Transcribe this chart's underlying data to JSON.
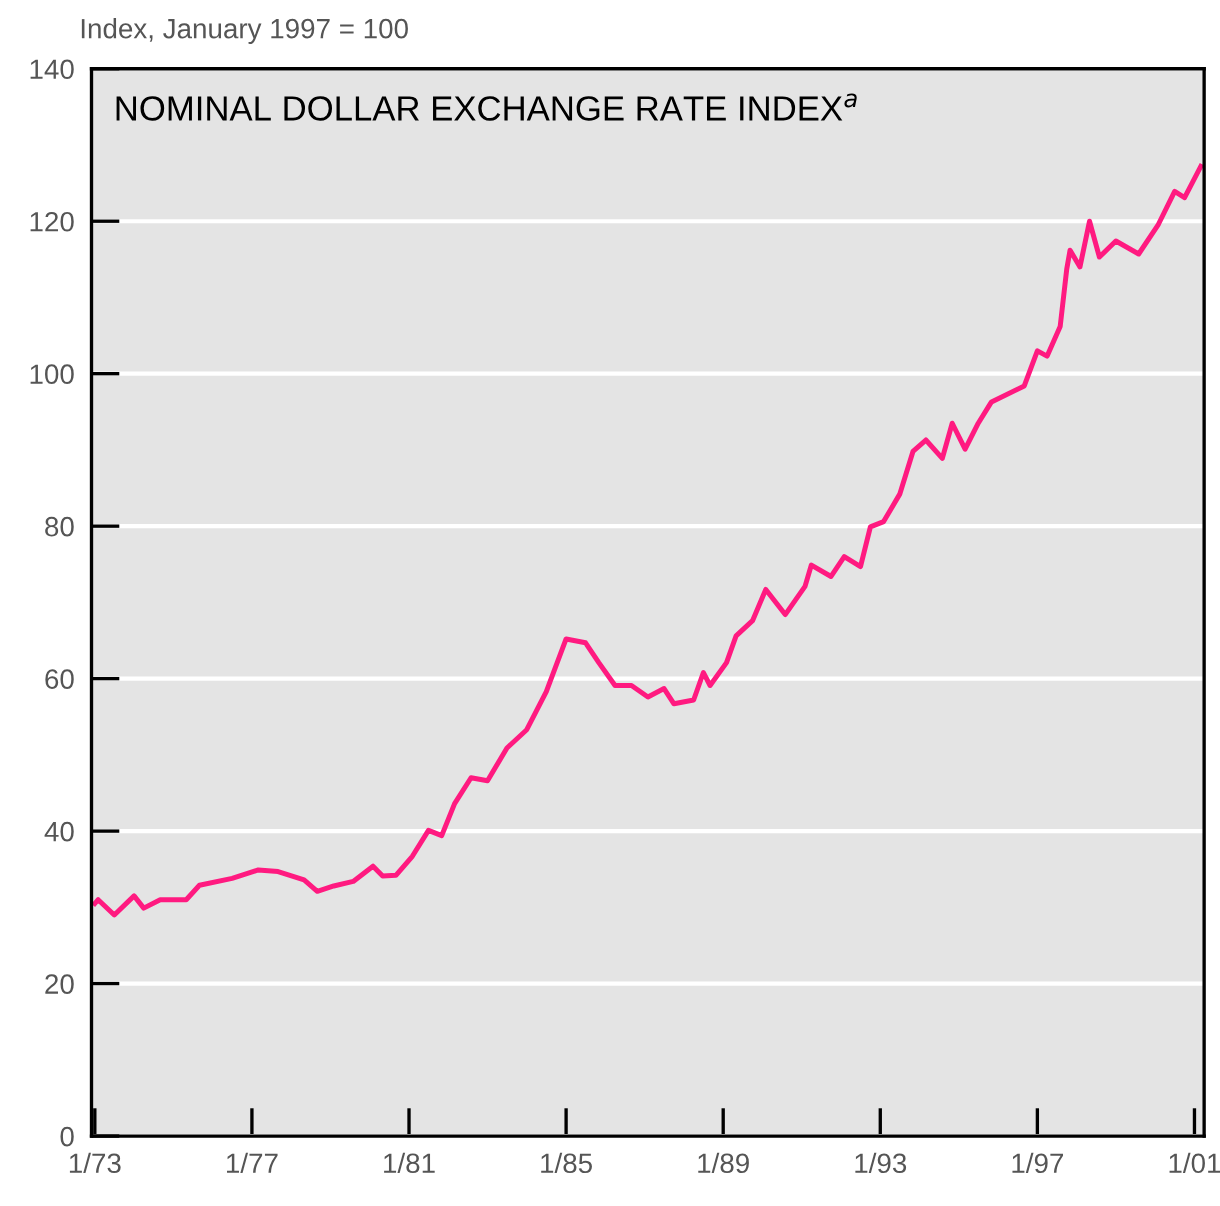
{
  "chart_data": {
    "type": "line",
    "title": "NOMINAL DOLLAR EXCHANGE RATE INDEX$^{a}$",
    "ylabel": "Index, January 1997 = 100",
    "x": [
      "1973-01",
      "1973-02",
      "1973-07",
      "1974-01",
      "1974-04",
      "1974-09",
      "1975-05",
      "1975-09",
      "1976-07",
      "1977-03",
      "1977-09",
      "1978-05",
      "1978-09",
      "1979-02",
      "1979-08",
      "1980-02",
      "1980-05",
      "1980-09",
      "1981-02",
      "1981-07",
      "1981-11",
      "1982-03",
      "1982-08",
      "1983-01",
      "1983-07",
      "1984-01",
      "1984-07",
      "1985-01",
      "1985-07",
      "1985-11",
      "1986-04",
      "1986-09",
      "1987-02",
      "1987-07",
      "1987-10",
      "1988-04",
      "1988-07",
      "1988-09",
      "1989-02",
      "1989-05",
      "1989-10",
      "1990-02",
      "1990-08",
      "1991-02",
      "1991-04",
      "1991-10",
      "1992-02",
      "1992-07",
      "1992-10",
      "1993-02",
      "1993-07",
      "1993-11",
      "1994-03",
      "1994-08",
      "1994-11",
      "1995-03",
      "1995-07",
      "1995-11",
      "1996-09",
      "1997-01",
      "1997-04",
      "1997-08",
      "1997-10",
      "1997-11",
      "1998-02",
      "1998-05",
      "1998-08",
      "1999-01",
      "1999-08",
      "2000-02",
      "2000-07",
      "2000-10",
      "2001-03"
    ],
    "series": [
      {
        "color": "#ff1a80",
        "values": [
          30.5,
          31.0,
          29.0,
          31.5,
          29.9,
          31.0,
          31.0,
          32.9,
          33.8,
          34.9,
          34.7,
          33.6,
          32.1,
          32.8,
          33.4,
          35.4,
          34.1,
          34.2,
          36.7,
          40.1,
          39.4,
          43.6,
          47.0,
          46.6,
          50.9,
          53.3,
          58.3,
          65.2,
          64.7,
          62.1,
          59.1,
          59.1,
          57.6,
          58.7,
          56.7,
          57.2,
          60.8,
          59.1,
          62.1,
          65.6,
          67.6,
          71.7,
          68.4,
          72.1,
          74.9,
          73.4,
          76.0,
          74.7,
          79.9,
          80.6,
          84.2,
          89.8,
          91.3,
          88.9,
          93.5,
          90.1,
          93.5,
          96.3,
          98.4,
          103.0,
          102.3,
          106.2,
          113.7,
          116.2,
          114.0,
          120.0,
          115.3,
          117.4,
          115.7,
          119.6,
          123.9,
          123.1,
          127.2
        ]
      }
    ],
    "xlim": [
      "1972-12",
      "2001-04"
    ],
    "ylim": [
      0,
      140
    ],
    "xticks": [
      {
        "value": "1973-01",
        "label": "1/73"
      },
      {
        "value": "1977-01",
        "label": "1/77"
      },
      {
        "value": "1981-01",
        "label": "1/81"
      },
      {
        "value": "1985-01",
        "label": "1/85"
      },
      {
        "value": "1989-01",
        "label": "1/89"
      },
      {
        "value": "1993-01",
        "label": "1/93"
      },
      {
        "value": "1997-01",
        "label": "1/97"
      },
      {
        "value": "2001-01",
        "label": "1/01"
      }
    ],
    "yticks": [
      0,
      20,
      40,
      60,
      80,
      100,
      120,
      140
    ],
    "grid": "y",
    "line_style": "solid"
  }
}
